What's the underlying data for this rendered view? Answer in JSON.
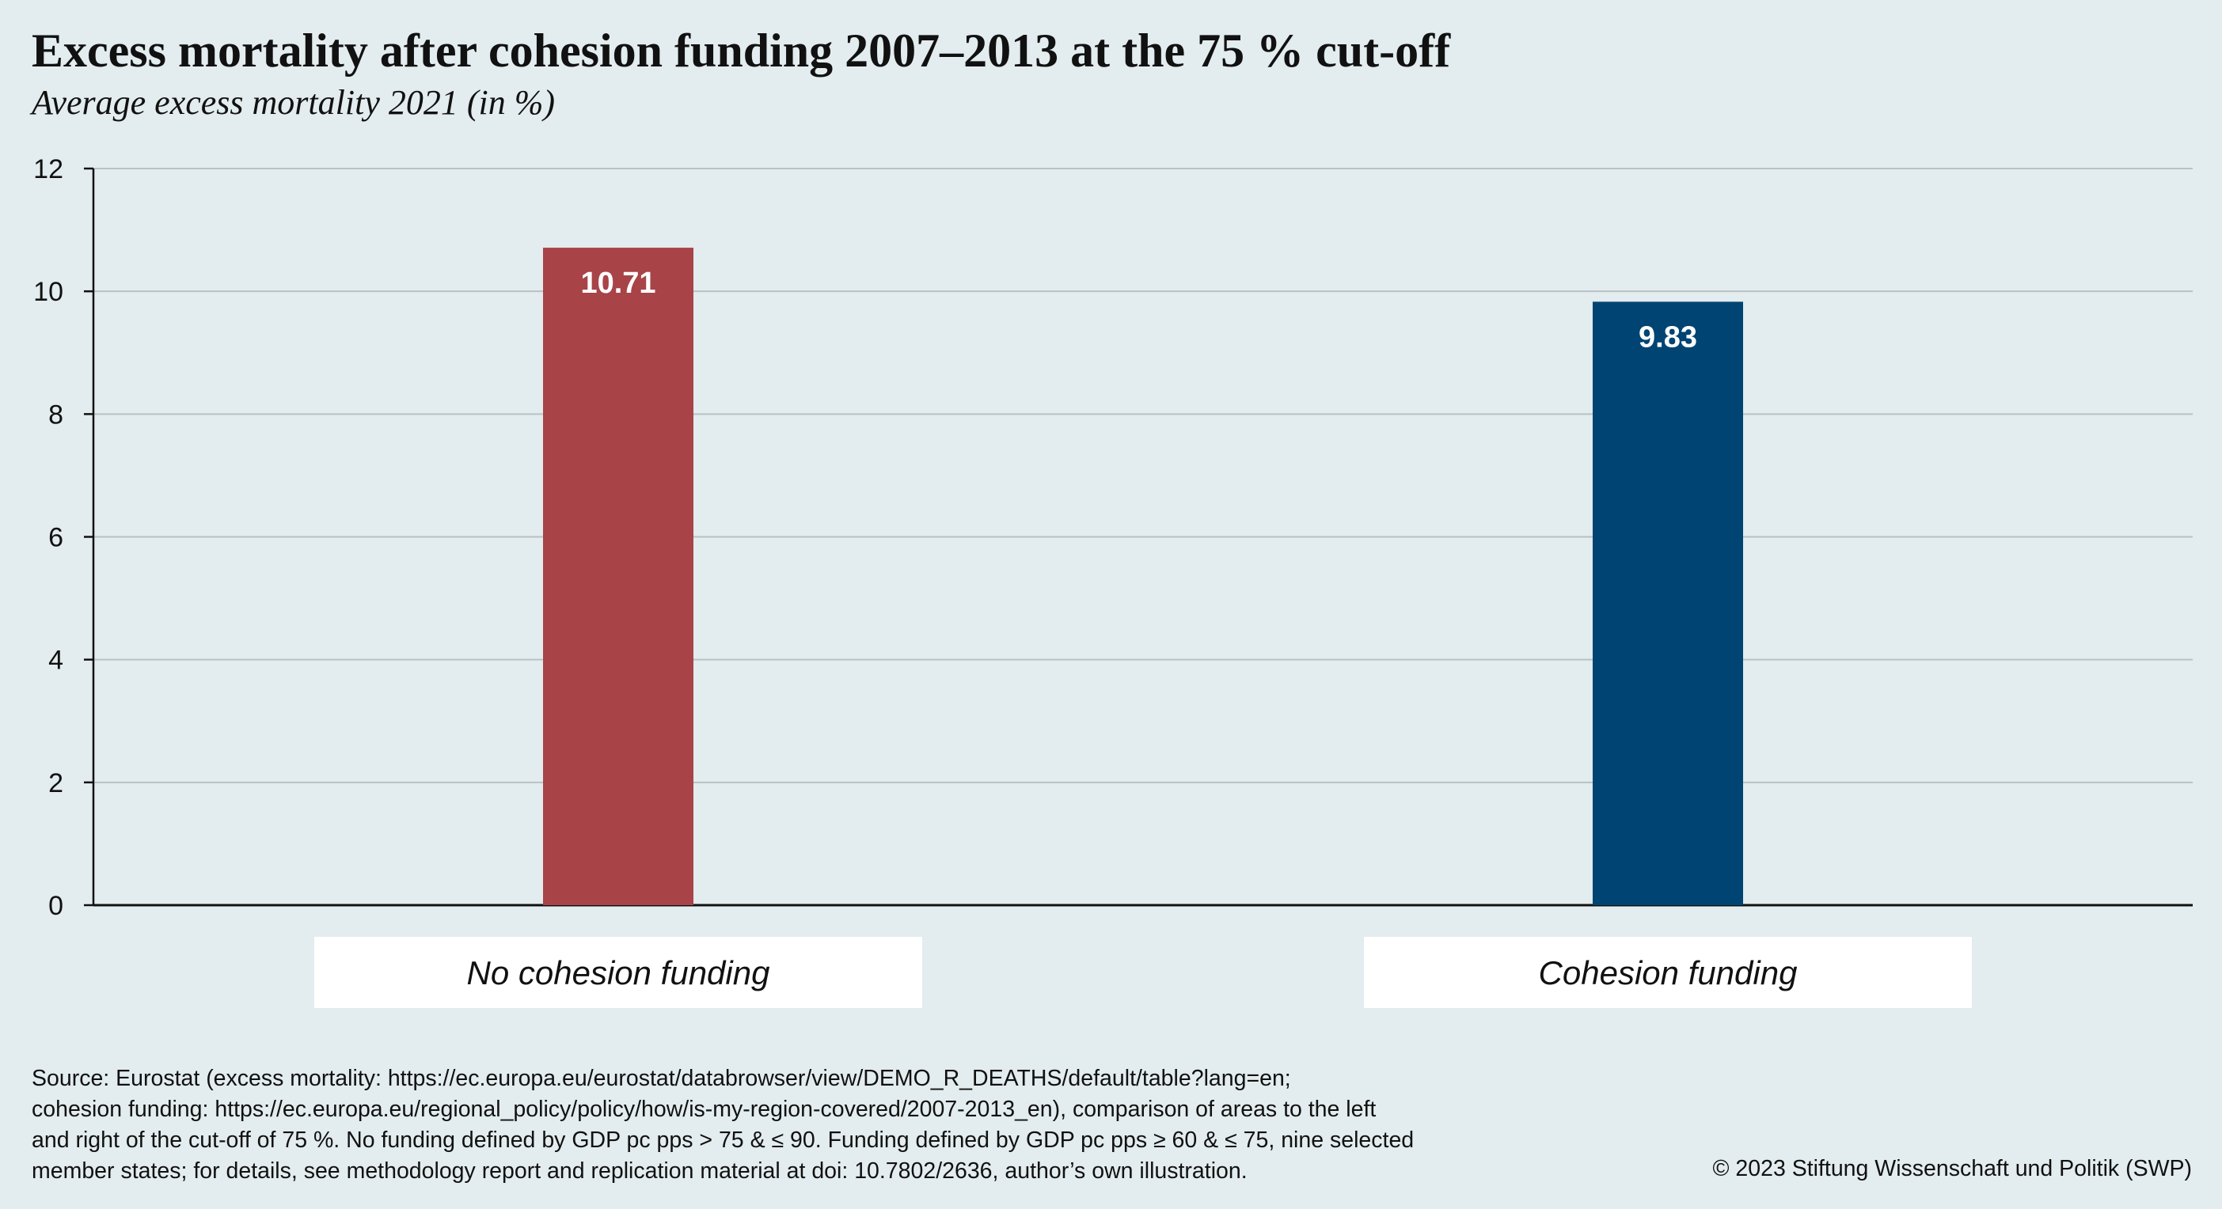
{
  "title": "Excess mortality after cohesion funding 2007–2013 at the 75 % cut-off",
  "subtitle": "Average excess mortality 2021 (in %)",
  "chart_data": {
    "type": "bar",
    "title": "Excess mortality after cohesion funding 2007–2013 at the 75 % cut-off",
    "subtitle": "Average excess mortality 2021 (in %)",
    "categories": [
      "No cohesion funding",
      "Cohesion funding"
    ],
    "values": [
      10.71,
      9.83
    ],
    "value_labels": [
      "10.71",
      "9.83"
    ],
    "colors": [
      "#a84347",
      "#004473"
    ],
    "ylim": [
      0,
      12
    ],
    "yticks": [
      0,
      2,
      4,
      6,
      8,
      10,
      12
    ],
    "ytick_labels": [
      "0",
      "2",
      "4",
      "6",
      "8",
      "10",
      "12"
    ],
    "grid": true,
    "xlabel": "",
    "ylabel": ""
  },
  "source_lines": [
    "Source: Eurostat (excess mortality: https://ec.europa.eu/eurostat/databrowser/view/DEMO_R_DEATHS/default/table?lang=en;",
    "cohesion funding: https://ec.europa.eu/regional_policy/policy/how/is-my-region-covered/2007-2013_en), comparison of areas to the left",
    "and right of the cut-off of 75 %. No funding defined by GDP pc pps > 75 & ≤ 90. Funding defined by GDP pc pps ≥ 60 & ≤ 75, nine selected",
    "member states; for details, see methodology report and replication material at doi: 10.7802/2636, author’s own illustration."
  ],
  "copyright": "© 2023 Stiftung Wissenschaft und Politik (SWP)",
  "colors": {
    "background": "#e3ecee",
    "grid": "#b9c1c4",
    "axis": "#111111",
    "label_box": "#ffffff"
  }
}
